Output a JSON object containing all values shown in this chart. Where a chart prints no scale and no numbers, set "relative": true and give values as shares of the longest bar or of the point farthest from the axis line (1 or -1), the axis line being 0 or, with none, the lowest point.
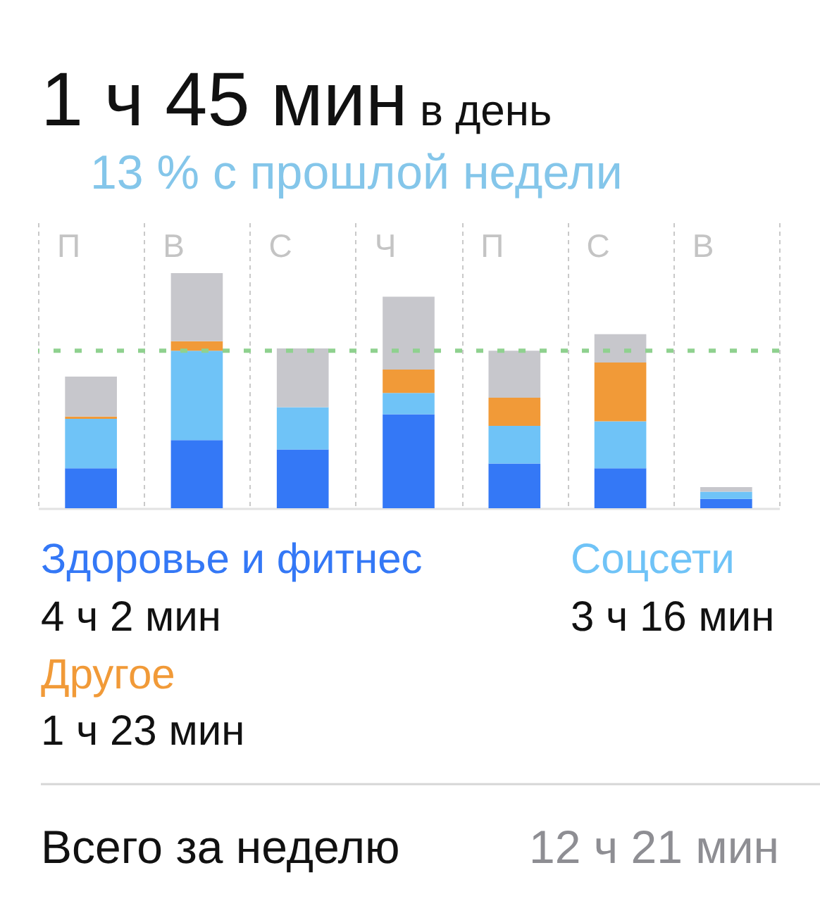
{
  "chart_data": {
    "type": "bar",
    "title": "1 ч 45 мин",
    "subtitle": "13 % с прошлой недели",
    "categories": [
      "П",
      "В",
      "С",
      "Ч",
      "П",
      "С",
      "В"
    ],
    "series": [
      {
        "name": "Здоровье и фитнес",
        "color": "#3478f6",
        "values": [
          0.17,
          0.29,
          0.25,
          0.4,
          0.19,
          0.17,
          0.04
        ]
      },
      {
        "name": "Соцсети",
        "color": "#6fc3f7",
        "values": [
          0.21,
          0.38,
          0.18,
          0.09,
          0.16,
          0.2,
          0.03
        ]
      },
      {
        "name": "Другое",
        "color": "#f19a38",
        "values": [
          0.01,
          0.04,
          null,
          0.1,
          0.12,
          0.25,
          null
        ]
      },
      {
        "color": "#c7c7cc",
        "values": [
          0.17,
          0.29,
          0.25,
          0.31,
          0.2,
          0.12,
          0.02
        ]
      }
    ],
    "stacked": true,
    "relative": true,
    "legend": "bottom",
    "grid": "x",
    "ref_lines": [
      {
        "axis": "y",
        "value": 0.67,
        "color": "#8fd18f",
        "line_style": "dashed"
      }
    ],
    "annotations": [
      "в день",
      "4 ч 2 мин",
      "3 ч 16 мин",
      "1 ч 23 мин",
      "Всего за неделю",
      "12 ч 21 мин"
    ]
  }
}
